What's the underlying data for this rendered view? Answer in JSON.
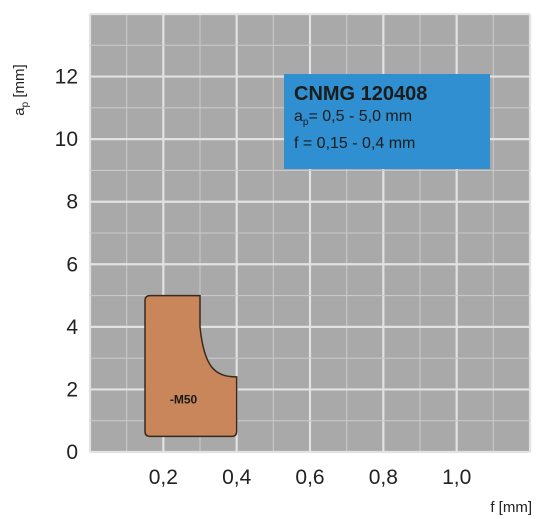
{
  "chart_data": {
    "type": "area",
    "x_axis": {
      "label": "f [mm]",
      "range": [
        0,
        1.2
      ],
      "ticks": [
        0.2,
        0.4,
        0.6,
        0.8,
        1.0
      ],
      "tick_labels": [
        "0,2",
        "0,4",
        "0,6",
        "0,8",
        "1,0"
      ]
    },
    "y_axis": {
      "label": "ap [mm]",
      "label_main": "a",
      "label_sub": "p",
      "label_unit": " [mm]",
      "range": [
        0,
        14
      ],
      "ticks": [
        0,
        2,
        4,
        6,
        8,
        10,
        12
      ],
      "tick_labels": [
        "0",
        "2",
        "4",
        "6",
        "8",
        "10",
        "12"
      ]
    },
    "grid": true,
    "regions": [
      {
        "name": "-M50",
        "color": "#c8865a",
        "outline": [
          [
            0.15,
            0.5
          ],
          [
            0.15,
            5.0
          ],
          [
            0.3,
            5.0
          ],
          [
            0.3,
            4.0
          ],
          [
            0.4,
            2.4
          ],
          [
            0.4,
            0.5
          ]
        ]
      }
    ],
    "info_box": {
      "title": "CNMG 120408",
      "ap_label": "a",
      "ap_sub": "p",
      "ap_text": "=  0,5 - 5,0 mm",
      "f_text": "f  =  0,15 - 0,4 mm"
    }
  }
}
